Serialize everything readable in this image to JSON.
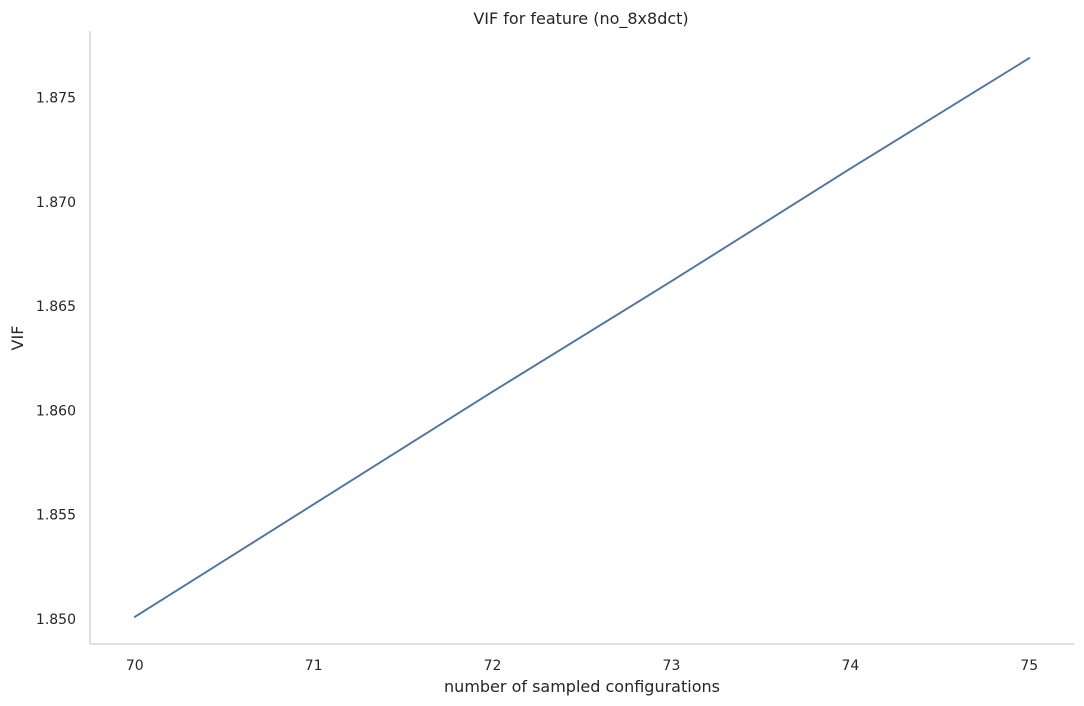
{
  "chart_data": {
    "type": "line",
    "title": "VIF for feature (no_8x8dct)",
    "xlabel": "number of sampled configurations",
    "ylabel": "VIF",
    "x": [
      70,
      71,
      72,
      73,
      74,
      75
    ],
    "series": [
      {
        "values": [
          1.8501,
          1.8555,
          1.8609,
          1.8662,
          1.8716,
          1.8769
        ],
        "color": "#4c72b0"
      }
    ],
    "xticks": [
      70,
      71,
      72,
      73,
      74,
      75
    ],
    "xtick_labels": [
      "70",
      "71",
      "72",
      "73",
      "74",
      "75"
    ],
    "yticks": [
      1.85,
      1.855,
      1.86,
      1.865,
      1.87,
      1.875
    ],
    "ytick_labels": [
      "1.850",
      "1.855",
      "1.860",
      "1.865",
      "1.870",
      "1.875"
    ],
    "xlim": [
      69.75,
      75.25
    ],
    "ylim": [
      1.8488,
      1.8782
    ],
    "grid": false,
    "spine_color": "#cccccc"
  }
}
